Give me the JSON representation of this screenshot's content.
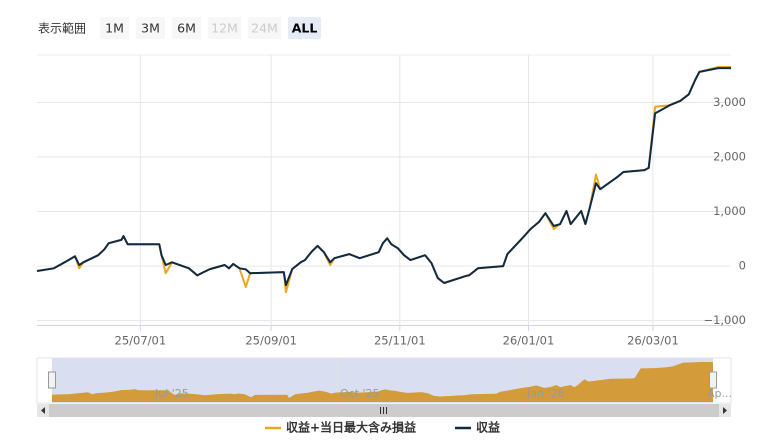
{
  "chart_data": {
    "type": "line",
    "range_selector": {
      "label": "表示範囲",
      "buttons": [
        {
          "label": "1M"
        },
        {
          "label": "3M"
        },
        {
          "label": "6M"
        },
        {
          "label": "12M",
          "disabled": true
        },
        {
          "label": "24M",
          "disabled": true
        },
        {
          "label": "ALL",
          "selected": true
        }
      ]
    },
    "x": [
      "25/05/13",
      "25/05/21",
      "25/05/27",
      "25/05/31",
      "25/06/02",
      "25/06/04",
      "25/06/11",
      "25/06/14",
      "25/06/16",
      "25/06/22",
      "25/06/23",
      "25/06/25",
      "25/07/10",
      "25/07/11",
      "25/07/13",
      "25/07/16",
      "25/07/21",
      "25/07/24",
      "25/07/28",
      "25/07/31",
      "25/08/03",
      "25/08/10",
      "25/08/12",
      "25/08/14",
      "25/08/17",
      "25/08/20",
      "25/08/22",
      "25/09/07",
      "25/09/08",
      "25/09/11",
      "25/09/15",
      "25/09/17",
      "25/09/20",
      "25/09/23",
      "25/09/26",
      "25/09/29",
      "25/10/01",
      "25/10/08",
      "25/10/13",
      "25/10/22",
      "25/10/24",
      "25/10/26",
      "25/10/28",
      "25/10/31",
      "25/11/03",
      "25/11/06",
      "25/11/13",
      "25/11/16",
      "25/11/19",
      "25/11/22",
      "25/12/02",
      "25/12/04",
      "25/12/08",
      "25/12/20",
      "25/12/22",
      "25/12/29",
      "26/01/02",
      "26/01/06",
      "26/01/09",
      "26/01/13",
      "26/01/16",
      "26/01/19",
      "26/01/21",
      "26/01/26",
      "26/01/28",
      "26/01/30",
      "26/02/02",
      "26/02/04",
      "26/02/12",
      "26/02/15",
      "26/02/25",
      "26/02/27",
      "26/03/02",
      "26/03/09",
      "26/03/14",
      "26/03/18",
      "26/03/21",
      "26/03/23",
      "26/04/01",
      "26/04/07"
    ],
    "series": [
      {
        "name": "収益+当日最大含み損益",
        "color": "#eba81c",
        "values": [
          -90,
          -40,
          90,
          180,
          -40,
          70,
          200,
          310,
          420,
          480,
          550,
          400,
          400,
          200,
          -130,
          70,
          0,
          -40,
          -170,
          -110,
          -55,
          20,
          -40,
          40,
          -40,
          -385,
          -130,
          -110,
          -480,
          -55,
          70,
          110,
          255,
          370,
          255,
          20,
          145,
          220,
          145,
          255,
          420,
          510,
          400,
          330,
          200,
          110,
          200,
          55,
          -220,
          -310,
          -185,
          -165,
          -40,
          0,
          220,
          510,
          680,
          810,
          970,
          680,
          770,
          1010,
          770,
          1010,
          770,
          1065,
          1680,
          1410,
          1630,
          1725,
          1760,
          1800,
          2920,
          2950,
          3030,
          3150,
          3410,
          3560,
          3650,
          3650
        ]
      },
      {
        "name": "収益",
        "color": "#0e2a47",
        "values": [
          -90,
          -40,
          90,
          180,
          20,
          70,
          200,
          310,
          420,
          480,
          550,
          400,
          400,
          200,
          20,
          70,
          0,
          -40,
          -170,
          -110,
          -55,
          20,
          -40,
          40,
          -40,
          -60,
          -130,
          -110,
          -350,
          -55,
          70,
          110,
          255,
          370,
          255,
          70,
          145,
          220,
          145,
          255,
          420,
          510,
          400,
          330,
          200,
          110,
          200,
          55,
          -220,
          -310,
          -185,
          -165,
          -40,
          0,
          220,
          510,
          680,
          810,
          970,
          735,
          770,
          1010,
          770,
          1010,
          770,
          1065,
          1520,
          1410,
          1630,
          1725,
          1760,
          1800,
          2800,
          2950,
          3030,
          3150,
          3410,
          3560,
          3630,
          3630
        ]
      }
    ],
    "xlim": [
      "25/05/13",
      "26/04/07"
    ],
    "xticks": [
      "25/07/01",
      "25/09/01",
      "25/11/01",
      "26/01/01",
      "26/03/01"
    ],
    "ylim": [
      -1080,
      3870
    ],
    "yticks": [
      {
        "value": -1000,
        "label": "−1,000"
      },
      0,
      {
        "value": 1000,
        "label": "1,000"
      },
      {
        "value": 2000,
        "label": "2,000"
      },
      {
        "value": 3000,
        "label": "3,000"
      }
    ],
    "grid": true,
    "navigator": {
      "color": "#d49b3a",
      "labels": [
        "Jul '25",
        "Oct '25",
        "Jan '26",
        "Ap..."
      ]
    }
  }
}
